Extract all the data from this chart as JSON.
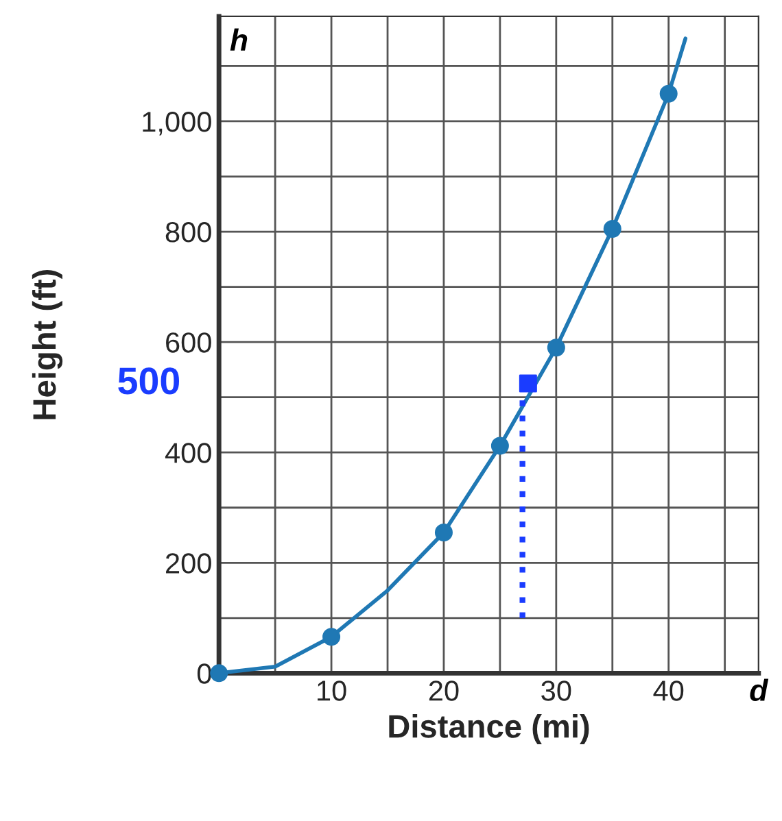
{
  "chart_data": {
    "type": "line",
    "xlabel": "Distance (mi)",
    "ylabel": "Height (ft)",
    "series": [
      {
        "color": "#1f78b4",
        "marker": "none",
        "x": [
          0,
          5,
          10,
          15,
          20,
          25,
          30,
          35,
          40,
          41.5
        ],
        "values": [
          0,
          12,
          66,
          150,
          255,
          412,
          590,
          805,
          1050,
          1150
        ]
      },
      {
        "type": "scatter",
        "color": "#1f78b4",
        "marker": "circle",
        "x": [
          0,
          10,
          20,
          25,
          30,
          35,
          40
        ],
        "values": [
          0,
          66,
          255,
          412,
          590,
          805,
          1050
        ]
      },
      {
        "type": "line",
        "color": "#1a3cff",
        "marker": "none",
        "line_style": "dotted",
        "x": [
          27,
          27
        ],
        "values": [
          100,
          500
        ]
      },
      {
        "type": "scatter",
        "color": "#1a3cff",
        "marker": "square",
        "x": [
          27.5
        ],
        "values": [
          525
        ]
      }
    ],
    "xlim": [
      0,
      48
    ],
    "ylim": [
      0,
      1190
    ],
    "xticks": [
      {
        "value": 0,
        "label": null
      },
      {
        "value": 5,
        "label": null
      },
      10,
      {
        "value": 15,
        "label": null
      },
      20,
      {
        "value": 25,
        "label": null
      },
      30,
      {
        "value": 35,
        "label": null
      },
      40,
      {
        "value": 45,
        "label": null
      }
    ],
    "yticks": [
      0,
      {
        "value": 100,
        "label": null
      },
      200,
      {
        "value": 300,
        "label": null
      },
      400,
      {
        "value": 500,
        "label": null
      },
      600,
      {
        "value": 700,
        "label": null
      },
      800,
      {
        "value": 900,
        "label": null
      },
      {
        "value": 1000,
        "label": "1,000"
      },
      {
        "value": 1100,
        "label": null
      }
    ],
    "grid": true,
    "annotations": [
      "h",
      "d",
      "500"
    ]
  }
}
